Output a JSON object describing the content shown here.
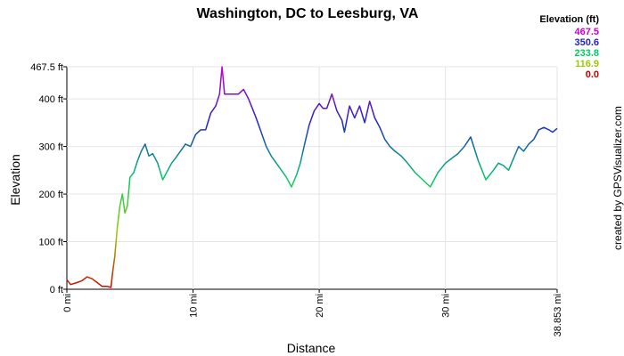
{
  "chart_data": {
    "type": "line",
    "title": "Washington, DC to Leesburg, VA",
    "xlabel": "Distance",
    "ylabel": "Elevation",
    "xlim": [
      0,
      38.853
    ],
    "ylim": [
      0,
      467.5
    ],
    "x_ticks": [
      {
        "value": 0,
        "label": "0 mi"
      },
      {
        "value": 10,
        "label": "10 mi"
      },
      {
        "value": 20,
        "label": "20 mi"
      },
      {
        "value": 30,
        "label": "30 mi"
      },
      {
        "value": 38.853,
        "label": "38.853 mi"
      }
    ],
    "y_ticks": [
      {
        "value": 0,
        "label": "0 ft"
      },
      {
        "value": 100,
        "label": "100 ft"
      },
      {
        "value": 200,
        "label": "200 ft"
      },
      {
        "value": 300,
        "label": "300 ft"
      },
      {
        "value": 400,
        "label": "400 ft"
      },
      {
        "value": 467.5,
        "label": "467.5 ft"
      }
    ],
    "legend": {
      "title": "Elevation (ft)",
      "position": "top-right",
      "entries": [
        {
          "label": "467.5",
          "color": "#cc00cc"
        },
        {
          "label": "350.6",
          "color": "#2222cc"
        },
        {
          "label": "233.8",
          "color": "#00cc66"
        },
        {
          "label": "116.9",
          "color": "#99cc00"
        },
        {
          "label": "0.0",
          "color": "#cc0000"
        }
      ]
    },
    "series": [
      {
        "x": [
          0,
          0.3,
          0.8,
          1.2,
          1.6,
          2.0,
          2.4,
          2.8,
          3.2,
          3.5,
          3.6,
          3.8,
          4.0,
          4.2,
          4.4,
          4.6,
          4.8,
          5.0,
          5.3,
          5.6,
          5.9,
          6.2,
          6.5,
          6.8,
          7.2,
          7.6,
          8.0,
          8.3,
          8.6,
          9.0,
          9.4,
          9.8,
          10.2,
          10.6,
          11.0,
          11.4,
          11.8,
          12.1,
          12.3,
          12.5,
          12.7,
          12.9,
          13.2,
          13.6,
          14.0,
          14.4,
          14.7,
          15.0,
          15.4,
          15.8,
          16.2,
          16.6,
          17.0,
          17.4,
          17.8,
          18.2,
          18.5,
          18.8,
          19.2,
          19.6,
          20.0,
          20.3,
          20.6,
          21.0,
          21.4,
          21.8,
          22.0,
          22.4,
          22.8,
          23.2,
          23.6,
          24.0,
          24.4,
          24.8,
          25.2,
          25.6,
          26.0,
          26.5,
          27.0,
          27.6,
          28.2,
          28.8,
          29.4,
          30.0,
          30.5,
          31.0,
          31.5,
          32.0,
          32.6,
          33.2,
          33.8,
          34.2,
          34.6,
          35.0,
          35.4,
          35.8,
          36.2,
          36.6,
          37.0,
          37.4,
          37.8,
          38.2,
          38.5,
          38.853
        ],
        "y": [
          20,
          10,
          14,
          18,
          26,
          22,
          14,
          6,
          6,
          4,
          30,
          70,
          130,
          175,
          200,
          160,
          175,
          235,
          245,
          270,
          290,
          305,
          280,
          285,
          265,
          230,
          250,
          265,
          275,
          290,
          305,
          300,
          325,
          335,
          335,
          370,
          385,
          410,
          467.5,
          410,
          410,
          410,
          410,
          410,
          420,
          400,
          380,
          360,
          330,
          300,
          280,
          265,
          250,
          235,
          215,
          240,
          265,
          300,
          345,
          375,
          390,
          380,
          380,
          410,
          375,
          355,
          330,
          385,
          360,
          385,
          350,
          395,
          360,
          340,
          315,
          300,
          290,
          280,
          265,
          245,
          230,
          215,
          245,
          265,
          275,
          285,
          300,
          320,
          270,
          230,
          250,
          265,
          260,
          250,
          275,
          300,
          290,
          305,
          315,
          335,
          340,
          335,
          330,
          338
        ]
      }
    ]
  },
  "credit": "created by GPSVisualizer.com"
}
